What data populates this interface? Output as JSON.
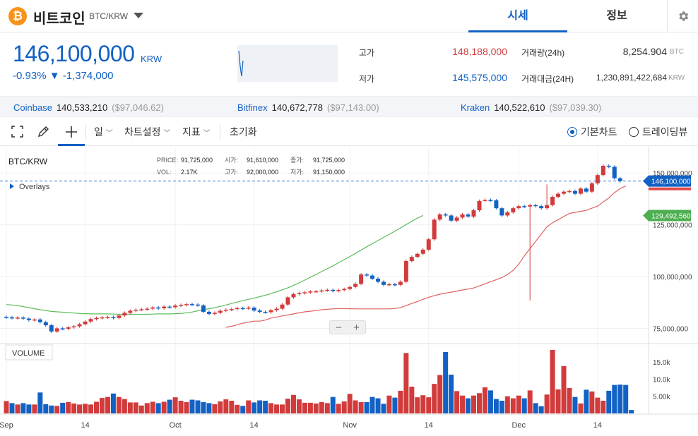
{
  "header": {
    "coin_symbol_glyph": "₿",
    "coin_name": "비트코인",
    "pair": "BTC/KRW",
    "tabs": [
      {
        "label": "시세",
        "active": true
      },
      {
        "label": "정보",
        "active": false
      }
    ]
  },
  "ticker": {
    "price": "146,100,000",
    "unit": "KRW",
    "change": "-0.93% ▼ -1,374,000",
    "stats": [
      {
        "label": "고가",
        "value": "148,188,000",
        "color": "#d23b3b"
      },
      {
        "label": "저가",
        "value": "145,575,000",
        "color": "#1261c4"
      }
    ],
    "stats2": [
      {
        "label": "거래량(24h)",
        "value": "8,254.904",
        "unit": "BTC"
      },
      {
        "label": "거래대금(24H)",
        "value": "1,230,891,422,684",
        "unit": "KRW"
      }
    ]
  },
  "exchanges": [
    {
      "name": "Coinbase",
      "value": "140,533,210",
      "usd": "($97,046.62)"
    },
    {
      "name": "Bitfinex",
      "value": "140,672,778",
      "usd": "($97,143.00)"
    },
    {
      "name": "Kraken",
      "value": "140,522,610",
      "usd": "($97,039.30)"
    }
  ],
  "toolbar": {
    "period": "일",
    "chart_settings": "차트설정",
    "indicators": "지표",
    "reset": "초기화",
    "mode_basic": "기본차트",
    "mode_tv": "트레이딩뷰"
  },
  "chart_info": {
    "symbol": "BTC/KRW",
    "overlays": "Overlays",
    "price_label": "PRICE:",
    "price": "91,725,000",
    "open_label": "시가:",
    "open": "91,610,000",
    "close_label": "종가:",
    "close": "91,725,000",
    "vol_label": "VOL:",
    "vol": "2.17K",
    "high_label": "고가:",
    "high": "92,000,000",
    "low_label": "저가:",
    "low": "91,150,000",
    "volume_label": "VOLUME",
    "zoom_minus": "−",
    "zoom_plus": "+"
  },
  "chart_data": {
    "type": "candlestick",
    "price_axis_ticks": [
      "150,000,000",
      "125,000,000",
      "100,000,000",
      "75,000,000"
    ],
    "price_axis_values": [
      150000000,
      125000000,
      100000000,
      75000000
    ],
    "volume_axis_ticks": [
      "15.0k",
      "10.0k",
      "5.00k"
    ],
    "volume_axis_values": [
      15000,
      10000,
      5000
    ],
    "x_ticks": [
      "Sep",
      "14",
      "Oct",
      "14",
      "Nov",
      "14",
      "Dec",
      "14"
    ],
    "x_tick_days": [
      0,
      14,
      30,
      44,
      61,
      75,
      91,
      105
    ],
    "current_price_label": "146,100,000",
    "current_price": 146100000,
    "ma_label": "129,492,560",
    "ma_value": 129492560,
    "ylim": [
      68000000,
      162000000
    ],
    "vol_lim": [
      0,
      18500
    ],
    "closes": [
      80.3,
      80.0,
      80.2,
      79.7,
      79.0,
      79.3,
      78.0,
      76.5,
      73.5,
      75.0,
      74.8,
      75.5,
      76.0,
      77.0,
      78.3,
      79.5,
      80.0,
      80.3,
      80.5,
      80.0,
      81.2,
      82.5,
      83.5,
      84.0,
      84.2,
      84.5,
      85.1,
      84.7,
      85.5,
      85.2,
      86.0,
      86.3,
      86.7,
      86.5,
      86.1,
      83.0,
      82.0,
      82.5,
      83.5,
      84.0,
      84.3,
      84.8,
      84.6,
      85.0,
      83.6,
      83.0,
      82.8,
      83.8,
      84.5,
      86.5,
      90.0,
      91.5,
      92.0,
      92.4,
      92.8,
      92.9,
      93.3,
      93.6,
      93.0,
      93.5,
      94.0,
      95.0,
      96.5,
      101.0,
      100.5,
      99.0,
      97.5,
      96.0,
      96.3,
      96.0,
      97.5,
      107.5,
      109.5,
      111.0,
      113.0,
      118.0,
      127.5,
      130.0,
      129.5,
      127.0,
      128.5,
      130.0,
      129.0,
      132.0,
      136.5,
      137.0,
      136.8,
      133.0,
      129.5,
      131.0,
      133.0,
      134.0,
      133.8,
      134.5,
      134.0,
      133.0,
      134.5,
      138.5,
      140.0,
      141.0,
      141.3,
      140.0,
      142.5,
      141.0,
      145.0,
      149.0,
      153.5,
      153.0,
      147.5,
      146.1
    ],
    "volumes": [
      3600,
      3000,
      2600,
      3000,
      2600,
      2600,
      6100,
      2700,
      2300,
      2200,
      3100,
      3300,
      2900,
      2600,
      2800,
      2600,
      3400,
      4500,
      4800,
      5800,
      4800,
      4200,
      3200,
      3200,
      2300,
      3000,
      3400,
      3000,
      3400,
      4000,
      4700,
      3700,
      3300,
      4000,
      3800,
      3300,
      3000,
      2700,
      3500,
      4100,
      3700,
      2500,
      2200,
      3800,
      3200,
      3800,
      3700,
      3000,
      2600,
      2600,
      4300,
      5400,
      4100,
      3100,
      3100,
      2900,
      3300,
      3000,
      4800,
      2800,
      3500,
      5700,
      3800,
      3300,
      3300,
      4800,
      4400,
      2800,
      5200,
      4600,
      6600,
      17600,
      7800,
      4700,
      5300,
      4700,
      8600,
      11200,
      17900,
      11300,
      6500,
      5200,
      4400,
      5200,
      5900,
      7600,
      6700,
      4200,
      3700,
      5000,
      4400,
      5200,
      4400,
      6700,
      3000,
      2100,
      5500,
      18500,
      7000,
      13800,
      7400,
      4800,
      2900,
      6900,
      6400,
      4600,
      3700,
      6600,
      8300,
      8400,
      8300,
      1000
    ],
    "ma_short": [
      75.5,
      76.0,
      76.8,
      77.5,
      78.0,
      78.5,
      78.5,
      79.0,
      80.0,
      80.5,
      81.0,
      81.5,
      82.0,
      82.5,
      83.0,
      83.3,
      83.6,
      84.0,
      84.2,
      84.4,
      84.6,
      84.6,
      84.5,
      84.4,
      84.4,
      84.4,
      84.4,
      84.4,
      84.4,
      84.4,
      84.6,
      85.0,
      86.0,
      87.0,
      88.0,
      89.0,
      90.0,
      90.8,
      91.5,
      92.0,
      92.5,
      93.0,
      93.5,
      94.0,
      94.5,
      95.5,
      96.5,
      97.5,
      98.5,
      99.5,
      101.0,
      103.0,
      106.0,
      110.0,
      113.5,
      117.0,
      120.5,
      124.0,
      126.0,
      127.5,
      129.0,
      130.5,
      131.0,
      131.5,
      132.0,
      133.0,
      134.0,
      136.0,
      138.0,
      140.5,
      142.5,
      143.7
    ],
    "ma_short_start": 39,
    "ma_long": [
      86.5,
      86.3,
      86.0,
      85.5,
      85.0,
      84.5,
      84.0,
      83.6,
      83.2,
      83.0,
      82.8,
      82.6,
      82.4,
      82.2,
      82.1,
      82.0,
      82.0,
      82.0,
      82.0,
      81.9,
      81.8,
      81.8,
      81.8,
      81.8,
      81.8,
      81.8,
      81.9,
      82.0,
      82.0,
      82.0,
      82.1,
      82.2,
      82.5,
      82.9,
      83.5,
      84.0,
      84.5,
      85.0,
      85.6,
      86.3,
      87.0,
      87.7,
      88.4,
      89.0,
      89.6,
      90.3,
      91.0,
      91.8,
      92.7,
      93.6,
      94.6,
      95.8,
      97.0,
      98.3,
      99.7,
      101.0,
      102.4,
      103.8,
      105.2,
      106.7,
      108.2,
      109.7,
      111.2,
      112.8,
      114.4,
      115.9,
      117.4,
      118.9,
      120.4,
      121.9,
      123.5,
      125.1,
      126.7,
      128.2,
      129.5
    ]
  }
}
